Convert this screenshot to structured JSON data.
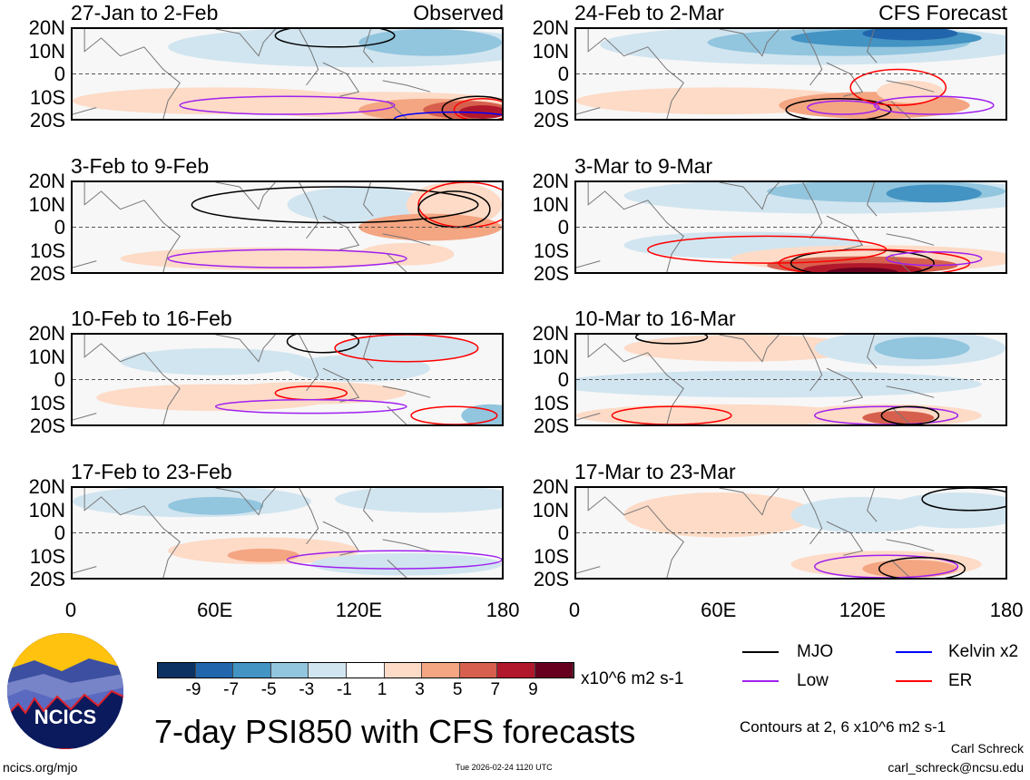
{
  "panels": [
    {
      "title": "27-Jan to 2-Feb",
      "label": "Observed"
    },
    {
      "title": "24-Feb to 2-Mar",
      "label": "CFS Forecast"
    },
    {
      "title": "3-Feb to 9-Feb"
    },
    {
      "title": "3-Mar to 9-Mar"
    },
    {
      "title": "10-Feb to 16-Feb"
    },
    {
      "title": "10-Mar to 16-Mar"
    },
    {
      "title": "17-Feb to 23-Feb"
    },
    {
      "title": "17-Mar to 23-Mar"
    }
  ],
  "y_ticks": [
    "20N",
    "10N",
    "0",
    "10S",
    "20S"
  ],
  "x_ticks": [
    "0",
    "60E",
    "120E",
    "180"
  ],
  "colorbar": {
    "labels": [
      "-9",
      "-7",
      "-5",
      "-3",
      "-1",
      "1",
      "3",
      "5",
      "7",
      "9"
    ],
    "unit": "x10^6 m2 s-1",
    "colors": [
      "#0b3263",
      "#2166ac",
      "#4393c3",
      "#92c5de",
      "#d1e5f0",
      "#ffffff",
      "#fddbc7",
      "#f4a582",
      "#d6604d",
      "#b2182b",
      "#67001f"
    ]
  },
  "legend": [
    {
      "label": "MJO",
      "color": "#000000"
    },
    {
      "label": "Kelvin x2",
      "color": "#0000ff"
    },
    {
      "label": "Low",
      "color": "#a020f0"
    },
    {
      "label": "ER",
      "color": "#ff0000"
    }
  ],
  "contours_note": "Contours at 2, 6 x10^6 m2 s-1",
  "title": "7-day PSI850 with CFS forecasts",
  "logo_text": "NCICS",
  "site": "ncics.org/mjo",
  "timestamp": "Tue 2026-02-24 1120 UTC",
  "author": "Carl Schreck",
  "email": "carl_schreck@ncsu.edu"
}
